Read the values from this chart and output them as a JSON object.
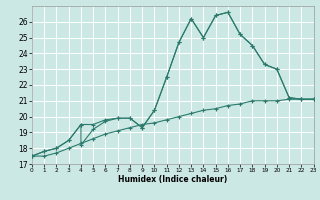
{
  "xlabel": "Humidex (Indice chaleur)",
  "bg_color": "#cce8e5",
  "grid_color": "#ffffff",
  "line_color": "#2b7a6c",
  "xlim": [
    0,
    23
  ],
  "ylim": [
    17,
    27
  ],
  "xticks": [
    0,
    1,
    2,
    3,
    4,
    5,
    6,
    7,
    8,
    9,
    10,
    11,
    12,
    13,
    14,
    15,
    16,
    17,
    18,
    19,
    20,
    21,
    22,
    23
  ],
  "yticks": [
    17,
    18,
    19,
    20,
    21,
    22,
    23,
    24,
    25,
    26
  ],
  "line1_x": [
    0,
    1,
    2,
    3,
    4,
    5,
    6,
    7,
    8,
    9,
    10,
    11,
    12,
    13,
    14,
    15,
    16,
    17,
    18,
    19,
    20,
    21,
    22,
    23
  ],
  "line1_y": [
    17.5,
    17.8,
    18.0,
    18.5,
    19.5,
    19.5,
    19.8,
    19.9,
    19.9,
    19.3,
    20.4,
    22.5,
    24.7,
    26.2,
    25.0,
    26.4,
    26.6,
    25.2,
    24.5,
    23.3,
    23.0,
    21.2,
    21.1,
    21.1
  ],
  "line2_x": [
    0,
    1,
    2,
    3,
    4,
    4,
    5,
    6,
    7,
    8,
    9,
    10,
    11,
    12,
    13,
    14,
    15,
    16,
    17,
    18,
    19,
    20,
    21,
    22,
    23
  ],
  "line2_y": [
    17.5,
    17.8,
    18.0,
    18.5,
    19.5,
    18.2,
    19.2,
    19.7,
    19.9,
    19.9,
    19.3,
    20.4,
    22.5,
    24.7,
    26.2,
    25.0,
    26.4,
    26.6,
    25.2,
    24.5,
    23.3,
    23.0,
    21.2,
    21.1,
    21.1
  ],
  "line3_x": [
    0,
    1,
    2,
    3,
    4,
    5,
    6,
    7,
    8,
    9,
    10,
    11,
    12,
    13,
    14,
    15,
    16,
    17,
    18,
    19,
    20,
    21,
    22,
    23
  ],
  "line3_y": [
    17.5,
    17.5,
    17.7,
    18.0,
    18.3,
    18.6,
    18.9,
    19.1,
    19.3,
    19.5,
    19.6,
    19.8,
    20.0,
    20.2,
    20.4,
    20.5,
    20.7,
    20.8,
    21.0,
    21.0,
    21.0,
    21.1,
    21.1,
    21.1
  ]
}
